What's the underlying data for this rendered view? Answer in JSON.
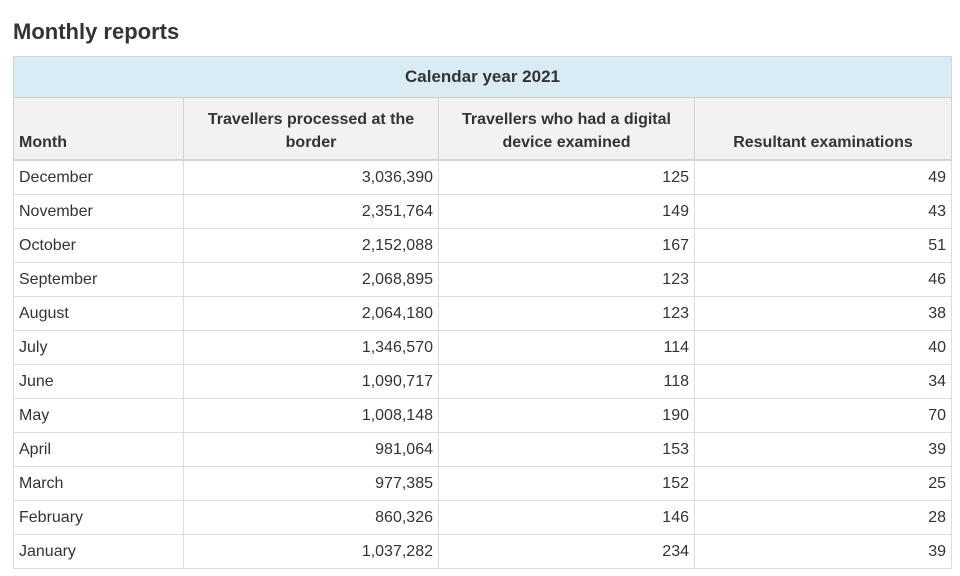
{
  "page": {
    "title": "Monthly reports"
  },
  "table": {
    "caption": "Calendar year 2021",
    "headers": {
      "month": "Month",
      "processed": "Travellers processed at the border",
      "examined": "Travellers who had a digital device examined",
      "resultant": "Resultant examinations"
    },
    "rows": [
      {
        "month": "December",
        "processed": "3,036,390",
        "examined": "125",
        "resultant": "49"
      },
      {
        "month": "November",
        "processed": "2,351,764",
        "examined": "149",
        "resultant": "43"
      },
      {
        "month": "October",
        "processed": "2,152,088",
        "examined": "167",
        "resultant": "51"
      },
      {
        "month": "September",
        "processed": "2,068,895",
        "examined": "123",
        "resultant": "46"
      },
      {
        "month": "August",
        "processed": "2,064,180",
        "examined": "123",
        "resultant": "38"
      },
      {
        "month": "July",
        "processed": "1,346,570",
        "examined": "114",
        "resultant": "40"
      },
      {
        "month": "June",
        "processed": "1,090,717",
        "examined": "118",
        "resultant": "34"
      },
      {
        "month": "May",
        "processed": "1,008,148",
        "examined": "190",
        "resultant": "70"
      },
      {
        "month": "April",
        "processed": "981,064",
        "examined": "153",
        "resultant": "39"
      },
      {
        "month": "March",
        "processed": "977,385",
        "examined": "152",
        "resultant": "25"
      },
      {
        "month": "February",
        "processed": "860,326",
        "examined": "146",
        "resultant": "28"
      },
      {
        "month": "January",
        "processed": "1,037,282",
        "examined": "234",
        "resultant": "39"
      }
    ]
  },
  "colors": {
    "caption_bg": "#d9ecf5",
    "header_bg": "#f2f2f2",
    "text": "#333333",
    "border": "#dddddd"
  }
}
